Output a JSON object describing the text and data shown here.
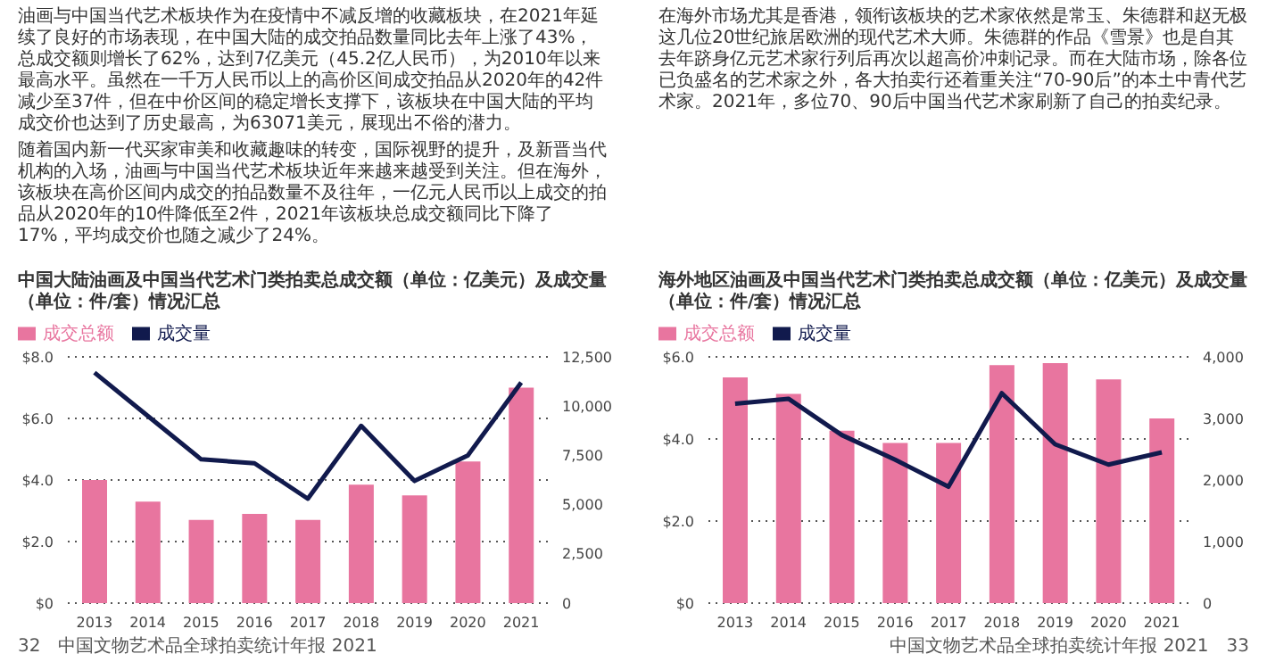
{
  "chart_data": [
    {
      "type": "bar",
      "title": "中国大陆油画及中国当代艺术门类拍卖总成交额（单位：亿美元）及成交量（单位：件/套）情况汇总",
      "categories": [
        "2013",
        "2014",
        "2015",
        "2016",
        "2017",
        "2018",
        "2019",
        "2020",
        "2021"
      ],
      "series": [
        {
          "name": "成交总额",
          "color": "#e8759f",
          "values": [
            4.0,
            3.3,
            2.7,
            2.9,
            2.7,
            3.85,
            3.5,
            4.6,
            7.0
          ]
        },
        {
          "name": "成交量",
          "type": "line",
          "axis": "y2",
          "color": "#111a4d",
          "values": [
            11700,
            9500,
            7300,
            7100,
            5300,
            9000,
            6200,
            7500,
            11200
          ]
        }
      ],
      "ylim": [
        0,
        8
      ],
      "yticks": [
        {
          "value": 0,
          "label": "$0"
        },
        {
          "value": 2,
          "label": "$2.0"
        },
        {
          "value": 4,
          "label": "$4.0"
        },
        {
          "value": 6,
          "label": "$6.0"
        },
        {
          "value": 8,
          "label": "$8.0"
        }
      ],
      "y2lim": [
        0,
        12500
      ],
      "y2ticks": [
        0,
        {
          "value": 2500,
          "label": "2,500"
        },
        {
          "value": 5000,
          "label": "5,000"
        },
        {
          "value": 7500,
          "label": "7,500"
        },
        {
          "value": 10000,
          "label": "10,000"
        },
        {
          "value": 12500,
          "label": "12,500"
        }
      ],
      "grid": "y",
      "legend": "top left",
      "marker": "none",
      "line_style": "solid",
      "annotations": [
        "油画与中国当代艺术板块作为在疫情中不减反增的收藏板块，在2021年延续了良好的市场表现，在中国大陆的成交拍品数量同比去年上涨了43%，总成交额则增长了62%，达到7亿美元（45.2亿人民币），为2010年以来最高水平。虽然在一千万人民币以上的高价区间成交拍品从2020年的42件减少至37件，但在中价区间的稳定增长支撑下，该板块在中国大陆的平均成交价也达到了历史最高，为63071美元，展现出不俗的潜力。",
        "随着国内新一代买家审美和收藏趣味的转变，国际视野的提升，及新晋当代机构的入场，油画与中国当代艺术板块近年来越来越受到关注。但在海外，该板块在高价区间内成交的拍品数量不及往年，一亿元人民币以上成交的拍品从2020年的10件降低至2件，2021年该板块总成交额同比下降了17%，平均成交价也随之减少了24%。",
        "32　中国文物艺术品全球拍卖统计年报 2021"
      ]
    },
    {
      "type": "bar",
      "title": "海外地区油画及中国当代艺术门类拍卖总成交额（单位：亿美元）及成交量（单位：件/套）情况汇总",
      "categories": [
        "2013",
        "2014",
        "2015",
        "2016",
        "2017",
        "2018",
        "2019",
        "2020",
        "2021"
      ],
      "series": [
        {
          "name": "成交总额",
          "color": "#e8759f",
          "values": [
            5.5,
            5.1,
            4.2,
            3.9,
            3.9,
            5.8,
            5.85,
            5.45,
            4.5
          ]
        },
        {
          "name": "成交量",
          "type": "line",
          "axis": "y2",
          "color": "#111a4d",
          "values": [
            3240,
            3320,
            2730,
            2330,
            1890,
            3410,
            2580,
            2250,
            2450
          ]
        }
      ],
      "ylim": [
        0,
        6
      ],
      "yticks": [
        {
          "value": 0,
          "label": "$0"
        },
        {
          "value": 2,
          "label": "$2.0"
        },
        {
          "value": 4,
          "label": "$4.0"
        },
        {
          "value": 6,
          "label": "$6.0"
        }
      ],
      "y2lim": [
        0,
        4000
      ],
      "y2ticks": [
        0,
        {
          "value": 1000,
          "label": "1,000"
        },
        {
          "value": 2000,
          "label": "2,000"
        },
        {
          "value": 3000,
          "label": "3,000"
        },
        {
          "value": 4000,
          "label": "4,000"
        }
      ],
      "grid": "y",
      "legend": "top left",
      "marker": "none",
      "line_style": "solid",
      "annotations": [
        "在海外市场尤其是香港，领衔该板块的艺术家依然是常玉、朱德群和赵无极这几位20世纪旅居欧洲的现代艺术大师。朱德群的作品《雪景》也是自其去年跻身亿元艺术家行列后再次以超高价冲刺记录。而在大陆市场，除各位已负盛名的艺术家之外，各大拍卖行还着重关注“70-90后”的本土中青代艺术家。2021年，多位70、90后中国当代艺术家刷新了自己的拍卖纪录。",
        "中国文物艺术品全球拍卖统计年报 2021　33"
      ]
    }
  ]
}
